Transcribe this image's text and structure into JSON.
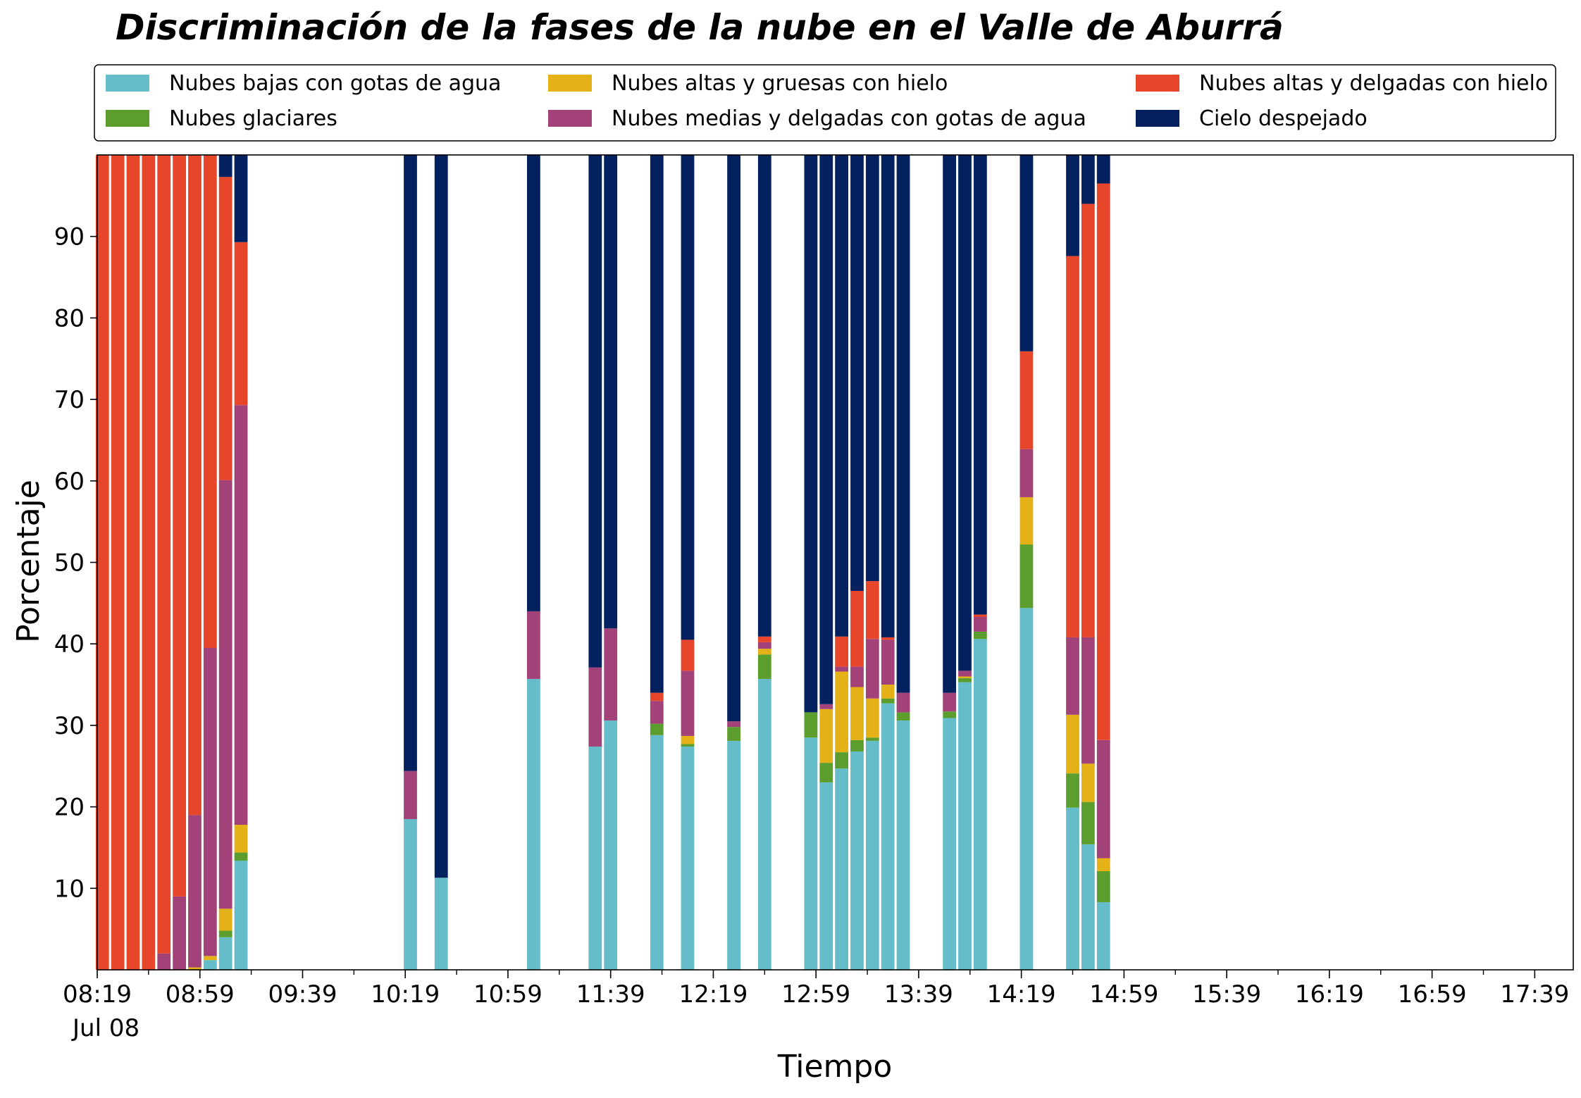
{
  "chart_data": {
    "type": "bar",
    "stacked": true,
    "title": "Discriminación de la fases de la nube en el Valle de Aburrá",
    "xlabel": "Tiempo",
    "ylabel": "Porcentaje",
    "ylim": [
      0,
      100
    ],
    "yticks": [
      10,
      20,
      30,
      40,
      50,
      60,
      70,
      80,
      90
    ],
    "xlim": [
      "08:19",
      "17:54"
    ],
    "x_date_label": "Jul 08",
    "xticks_major": [
      "08:19",
      "08:59",
      "09:39",
      "10:19",
      "10:59",
      "11:39",
      "12:19",
      "12:59",
      "13:39",
      "14:19",
      "14:59",
      "15:39",
      "16:19",
      "16:59",
      "17:39"
    ],
    "xticks_minor": [
      "08:39",
      "09:19",
      "09:59",
      "10:39",
      "11:19",
      "11:59",
      "12:39",
      "13:19",
      "13:59",
      "14:39",
      "15:19",
      "15:59",
      "16:39",
      "17:19"
    ],
    "bar_interval_minutes": 6,
    "grid": false,
    "legend_position": "top",
    "legend_columns": 3,
    "series": [
      {
        "name": "Nubes bajas con gotas de agua",
        "color": "#64BDC9"
      },
      {
        "name": "Nubes glaciares",
        "color": "#5C9E2D"
      },
      {
        "name": "Nubes altas y gruesas con hielo",
        "color": "#E4B116"
      },
      {
        "name": "Nubes medias y delgadas con gotas de agua",
        "color": "#A24278"
      },
      {
        "name": "Nubes altas y delgadas con hielo",
        "color": "#E8462B"
      },
      {
        "name": "Cielo despejado",
        "color": "#03215E"
      }
    ],
    "bars": [
      {
        "time": "08:21",
        "values": [
          0,
          0,
          0,
          0,
          100,
          0
        ]
      },
      {
        "time": "08:27",
        "values": [
          0,
          0,
          0,
          0,
          100,
          0
        ]
      },
      {
        "time": "08:33",
        "values": [
          0,
          0,
          0,
          0,
          100,
          0
        ]
      },
      {
        "time": "08:39",
        "values": [
          0,
          0,
          0,
          0,
          100,
          0
        ]
      },
      {
        "time": "08:45",
        "values": [
          0,
          0,
          0,
          2,
          98,
          0
        ]
      },
      {
        "time": "08:51",
        "values": [
          0,
          0,
          0,
          9,
          91,
          0
        ]
      },
      {
        "time": "08:57",
        "values": [
          0,
          0,
          0.3,
          18.7,
          81,
          0
        ]
      },
      {
        "time": "09:03",
        "values": [
          1.2,
          0,
          0.5,
          37.8,
          60.5,
          0
        ]
      },
      {
        "time": "09:09",
        "values": [
          4,
          0.8,
          2.7,
          52.6,
          37.2,
          2.7
        ]
      },
      {
        "time": "09:15",
        "values": [
          13.4,
          1,
          3.4,
          51.5,
          20,
          10.7
        ]
      },
      {
        "time": "10:21",
        "values": [
          18.5,
          0,
          0,
          5.9,
          0,
          75.6
        ]
      },
      {
        "time": "10:33",
        "values": [
          11.3,
          0,
          0,
          0,
          0,
          88.7
        ]
      },
      {
        "time": "11:09",
        "values": [
          35.7,
          0,
          0,
          8.3,
          0,
          56
        ]
      },
      {
        "time": "11:33",
        "values": [
          27.4,
          0,
          0,
          9.7,
          0,
          62.9
        ]
      },
      {
        "time": "11:39",
        "values": [
          30.6,
          0,
          0,
          11.3,
          0,
          58.1
        ]
      },
      {
        "time": "11:57",
        "values": [
          28.8,
          1.4,
          0,
          2.8,
          1,
          66
        ]
      },
      {
        "time": "12:09",
        "values": [
          27.4,
          0.3,
          1,
          8,
          3.8,
          59.5
        ]
      },
      {
        "time": "12:27",
        "values": [
          28.1,
          1.7,
          0,
          0.7,
          0,
          69.5
        ]
      },
      {
        "time": "12:39",
        "values": [
          35.7,
          3,
          0.7,
          0.8,
          0.7,
          59.1
        ]
      },
      {
        "time": "12:57",
        "values": [
          28.5,
          3.1,
          0,
          0,
          0,
          68.4
        ]
      },
      {
        "time": "13:03",
        "values": [
          23,
          2.4,
          6.6,
          0.6,
          0,
          67.4
        ]
      },
      {
        "time": "13:09",
        "values": [
          24.7,
          2,
          9.9,
          0.6,
          3.7,
          59.1
        ]
      },
      {
        "time": "13:15",
        "values": [
          26.8,
          1.4,
          6.5,
          2.5,
          9.3,
          53.5
        ]
      },
      {
        "time": "13:21",
        "values": [
          28.1,
          0.4,
          4.8,
          7.3,
          7.1,
          52.3
        ]
      },
      {
        "time": "13:27",
        "values": [
          32.7,
          0.6,
          1.7,
          5.5,
          0.3,
          59.2
        ]
      },
      {
        "time": "13:33",
        "values": [
          30.6,
          1,
          0,
          2.4,
          0,
          66
        ]
      },
      {
        "time": "13:51",
        "values": [
          30.9,
          0.8,
          0,
          2.3,
          0,
          66
        ]
      },
      {
        "time": "13:57",
        "values": [
          35.3,
          0.5,
          0.2,
          0.7,
          0,
          63.3
        ]
      },
      {
        "time": "14:03",
        "values": [
          40.6,
          0.9,
          0,
          1.8,
          0.3,
          56.4
        ]
      },
      {
        "time": "14:21",
        "values": [
          44.4,
          7.8,
          5.8,
          5.9,
          12,
          24.1
        ]
      },
      {
        "time": "14:39",
        "values": [
          19.9,
          4.2,
          7.2,
          9.5,
          46.8,
          12.4
        ]
      },
      {
        "time": "14:45",
        "values": [
          15.4,
          5.2,
          4.7,
          15.5,
          53.2,
          6
        ]
      },
      {
        "time": "14:51",
        "values": [
          8.3,
          3.8,
          1.6,
          14.5,
          68.3,
          3.5
        ]
      }
    ]
  }
}
